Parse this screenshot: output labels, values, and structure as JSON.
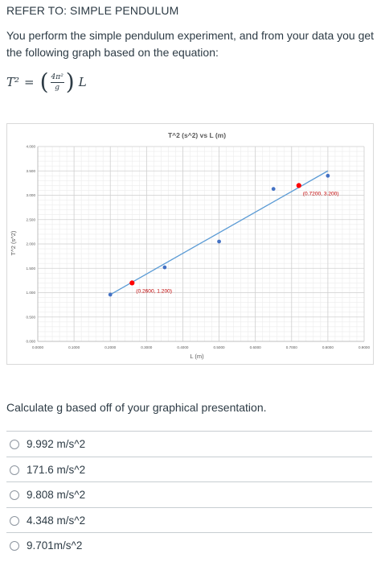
{
  "header": {
    "title": "REFER TO: SIMPLE PENDULUM"
  },
  "intro": {
    "text": "You perform the simple pendulum experiment, and from your data you get the following graph based on the equation:"
  },
  "equation": {
    "lhs": "T²",
    "equals": "=",
    "num": "4π²",
    "den": "g",
    "rhs": "L"
  },
  "chart_data": {
    "type": "scatter",
    "title": "T^2 (s^2) vs L (m)",
    "xlabel": "L (m)",
    "ylabel": "T^2 (s^2)",
    "xlim": [
      0,
      0.9
    ],
    "ylim": [
      0,
      4
    ],
    "grid": true,
    "x_ticks": [
      "0.0000",
      "0.1000",
      "0.2000",
      "0.3000",
      "0.4000",
      "0.5000",
      "0.6000",
      "0.7000",
      "0.8000",
      "0.9000"
    ],
    "y_ticks": [
      "0.000",
      "0.500",
      "1.000",
      "1.500",
      "2.000",
      "2.500",
      "3.000",
      "3.500",
      "4.000"
    ],
    "points": [
      {
        "x": 0.2,
        "y": 0.96
      },
      {
        "x": 0.35,
        "y": 1.52
      },
      {
        "x": 0.5,
        "y": 2.05
      },
      {
        "x": 0.65,
        "y": 3.13
      },
      {
        "x": 0.8,
        "y": 3.4
      }
    ],
    "trendline": {
      "x": [
        0.2,
        0.8
      ],
      "y": [
        0.96,
        3.5
      ]
    },
    "highlights": [
      {
        "x": 0.26,
        "y": 1.2,
        "label": "(0.2600, 1.200)",
        "color": "#ff0000"
      },
      {
        "x": 0.72,
        "y": 3.2,
        "label": "(0.7200, 3.200)",
        "color": "#ff0000"
      }
    ],
    "point_color": "#4472c4",
    "line_color": "#5b9bd5"
  },
  "question": {
    "text": "Calculate g based off of your graphical presentation."
  },
  "options": [
    {
      "label": "9.992 m/s^2"
    },
    {
      "label": "171.6 m/s^2"
    },
    {
      "label": "9.808 m/s^2"
    },
    {
      "label": "4.348 m/s^2"
    },
    {
      "label": "9.701m/s^2"
    }
  ]
}
